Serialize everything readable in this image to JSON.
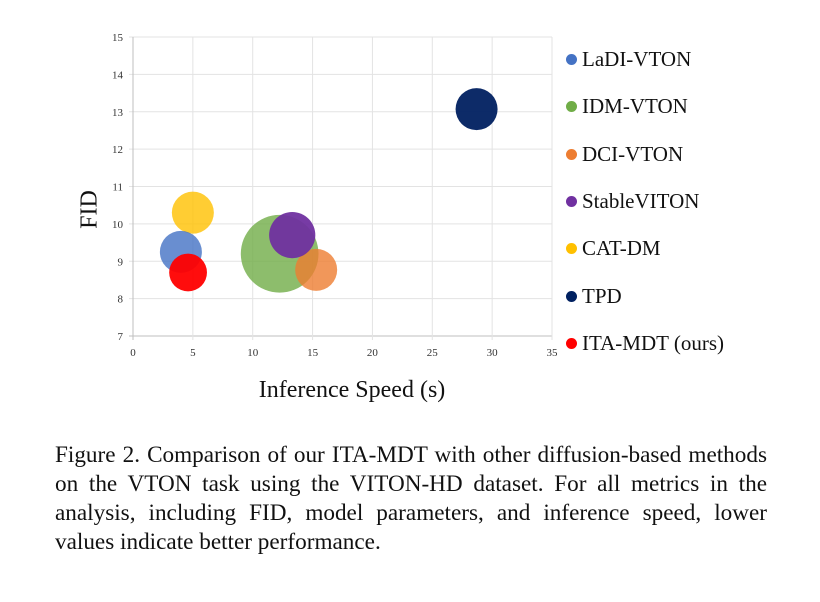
{
  "chart_data": {
    "type": "scatter",
    "subtype": "bubble",
    "title": "",
    "xlabel": "Inference Speed (s)",
    "ylabel": "FID",
    "xlim": [
      0,
      35
    ],
    "ylim": [
      7,
      15
    ],
    "xticks": [
      "0",
      "5",
      "10",
      "15",
      "20",
      "25",
      "30",
      "35"
    ],
    "yticks": [
      "7",
      "8",
      "9",
      "10",
      "11",
      "12",
      "13",
      "14",
      "15"
    ],
    "grid": true,
    "legend_position": "right",
    "series": [
      {
        "name": "LaDI-VTON",
        "color": "#4472C4",
        "x": 4.0,
        "y": 9.25,
        "size": 1.0
      },
      {
        "name": "IDM-VTON",
        "color": "#70AD47",
        "x": 12.25,
        "y": 9.2,
        "size": 1.85
      },
      {
        "name": "DCI-VTON",
        "color": "#ED7D31",
        "x": 15.3,
        "y": 8.77,
        "size": 1.0
      },
      {
        "name": "StableVITON",
        "color": "#7030A0",
        "x": 13.3,
        "y": 9.7,
        "size": 1.1
      },
      {
        "name": "CAT-DM",
        "color": "#FFC000",
        "x": 5.0,
        "y": 10.3,
        "size": 1.0
      },
      {
        "name": "TPD",
        "color": "#002060",
        "x": 28.7,
        "y": 13.07,
        "size": 1.0
      },
      {
        "name": "ITA-MDT (ours)",
        "color": "#FF0000",
        "x": 4.6,
        "y": 8.7,
        "size": 0.9
      }
    ]
  },
  "caption": "Figure 2. Comparison of our ITA-MDT with other diffusion-based methods on the VTON task using the VITON-HD dataset.  For all metrics in the analysis, including FID, model parameters, and inference speed, lower values indicate better performance."
}
